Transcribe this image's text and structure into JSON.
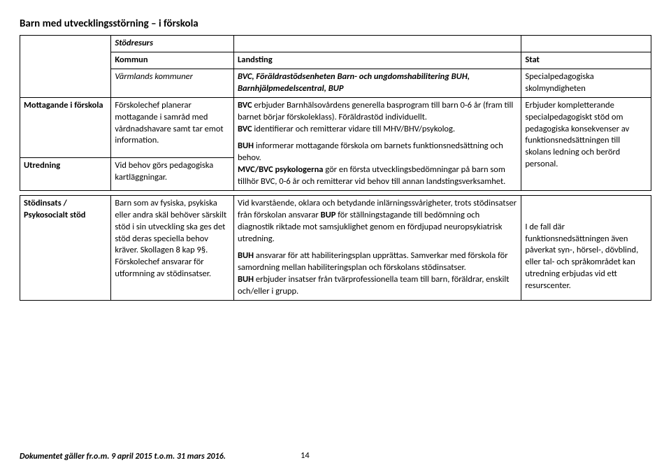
{
  "title": "Barn med utvecklingsstörning – i förskola",
  "table1": {
    "r0c1": "Stödresurs",
    "r1c1": "Kommun",
    "r1c2": "Landsting",
    "r1c3": "Stat",
    "r2c1": "Värmlands kommuner",
    "r2c2_b": "BVC, Föräldrastödsenheten Barn- och ungdomshabilitering BUH, Barnhjälpmedelscentral, BUP",
    "r2c3": "Specialpedagogiska skolmyndigheten",
    "r3c0": "Mottagande i förskola",
    "r3c1": "Förskolechef planerar mottagande i samråd med vårdnadshavare samt tar emot information.",
    "r3c2_b1": "BVC",
    "r3c2_t1": " erbjuder Barnhälsovårdens generella basprogram till barn 0-6 år (fram till barnet börjar förskoleklass). Föräldrastöd individuellt.",
    "r3c2_b2": "BVC",
    "r3c2_t2": " identifierar och remitterar vidare till MHV/BHV/psykolog.",
    "r3c2_b3": "BUH",
    "r3c2_t3": " informerar mottagande förskola om barnets funktionsnedsättning och behov.",
    "r3c3": "Erbjuder kompletterande specialpedagogiskt stöd om pedagogiska konsekvenser av funktionsnedsättningen till skolans ledning och berörd personal.",
    "r4c0": "Utredning",
    "r4c1": "Vid behov görs pedagogiska kartläggningar.",
    "r4c2_b": "MVC/BVC psykologerna",
    "r4c2_t": " gör en första utvecklingsbedömningar på barn som tillhör BVC, 0-6 år och remitterar vid behov till annan landstingsverksamhet."
  },
  "table2": {
    "r0c0": "Stödinsats / Psykosocialt stöd",
    "r0c1": "Barn som av fysiska, psykiska eller andra skäl behöver särskilt stöd i sin utveckling ska ges det stöd deras speciella behov kräver. Skollagen 8 kap 9§. Förskolechef ansvarar för utformning av stödinsatser.",
    "r0c2_p1a": "Vid kvarstående, oklara och betydande inlärningssvårigheter, trots stödinsatser från förskolan ansvarar ",
    "r0c2_p1b": "BUP",
    "r0c2_p1c": " för ställningstagande till bedömning och diagnostik riktade mot samsjuklighet genom en fördjupad neuropsykiatrisk utredning.",
    "r0c2_p2a": "BUH",
    "r0c2_p2b": " ansvarar för att habiliteringsplan upprättas. Samverkar med förskola för samordning mellan habiliteringsplan och förskolans stödinsatser.",
    "r0c2_p3a": "BUH",
    "r0c2_p3b": " erbjuder insatser från tvärprofessionella team till barn, föräldrar, enskilt och/eller i grupp.",
    "r0c3": "I de fall där funktionsnedsättningen även påverkat syn-, hörsel-, dövblind, eller tal- och språkområdet kan utredning erbjudas vid ett resurscenter."
  },
  "footer": {
    "text": "Dokumentet gäller fr.o.m. 9 april 2015 t.o.m. 31 mars 2016.",
    "page": "14"
  }
}
